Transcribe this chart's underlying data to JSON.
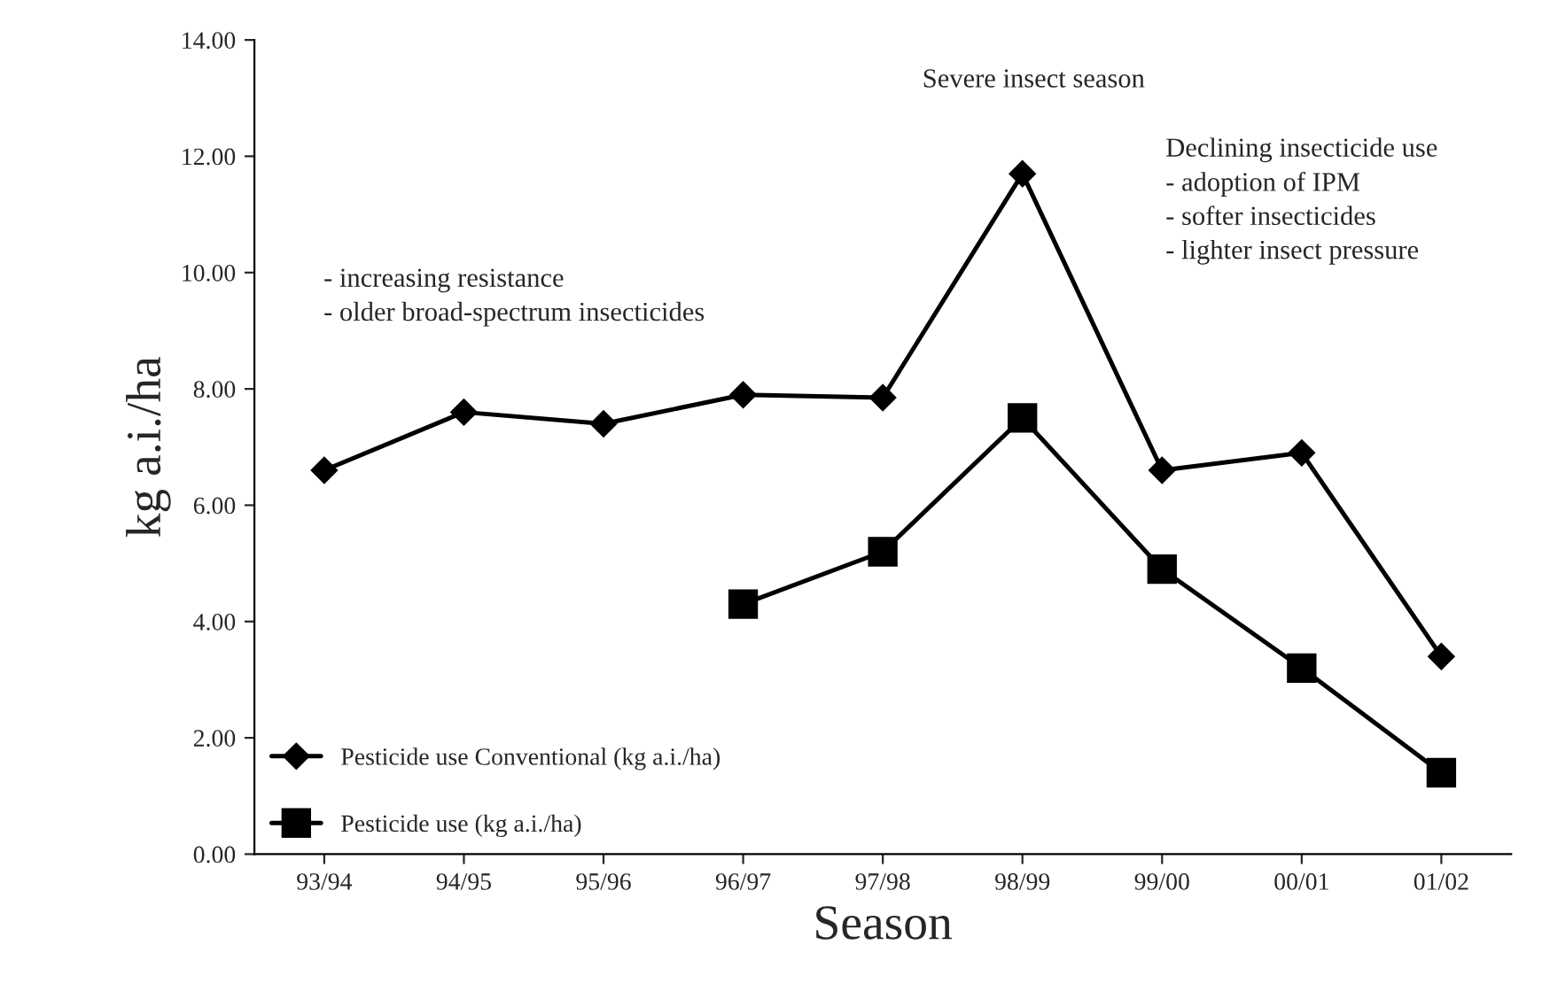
{
  "chart_data": {
    "type": "line",
    "xlabel": "Season",
    "ylabel": "kg a.i./ha",
    "categories": [
      "93/94",
      "94/95",
      "95/96",
      "96/97",
      "97/98",
      "98/99",
      "99/00",
      "00/01",
      "01/02"
    ],
    "series": [
      {
        "name": "Pesticide use Conventional (kg a.i./ha)",
        "color": "#000000",
        "marker": "diamond",
        "values": [
          6.6,
          7.6,
          7.4,
          7.9,
          7.85,
          11.7,
          6.6,
          6.9,
          3.4
        ]
      },
      {
        "name": "Pesticide use (kg a.i./ha)",
        "color": "#000000",
        "marker": "square",
        "values": [
          null,
          null,
          null,
          4.3,
          5.2,
          7.5,
          4.9,
          3.2,
          1.4
        ]
      }
    ],
    "ylim": [
      0,
      14
    ],
    "yticks": [
      {
        "value": 0,
        "label": "0.00"
      },
      {
        "value": 2,
        "label": "2.00"
      },
      {
        "value": 4,
        "label": "4.00"
      },
      {
        "value": 6,
        "label": "6.00"
      },
      {
        "value": 8,
        "label": "8.00"
      },
      {
        "value": 10,
        "label": "10.00"
      },
      {
        "value": 12,
        "label": "12.00"
      },
      {
        "value": 14,
        "label": "14.00"
      }
    ],
    "annotations": [
      "Severe insect season",
      "- increasing resistance\n- older broad-spectrum insecticides",
      "Declining insecticide use\n- adoption of IPM\n- softer insecticides\n- lighter insect pressure"
    ],
    "legend": "bottom left",
    "grid": false
  }
}
